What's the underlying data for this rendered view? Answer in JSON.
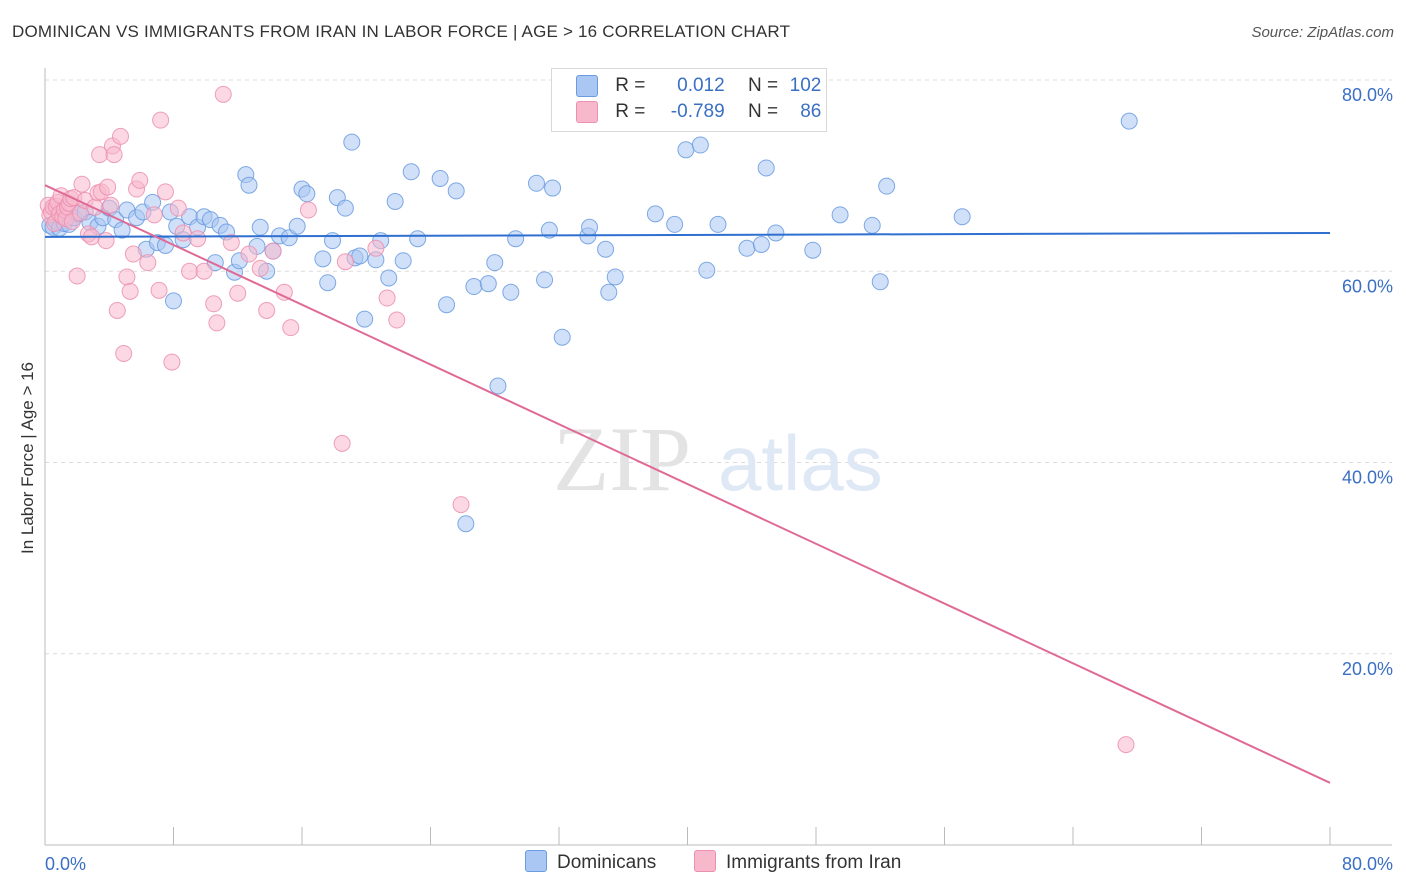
{
  "title": "DOMINICAN VS IMMIGRANTS FROM IRAN IN LABOR FORCE | AGE > 16 CORRELATION CHART",
  "source": "Source: ZipAtlas.com",
  "watermark": {
    "zip": "ZIP",
    "atlas": "atlas"
  },
  "legend": {
    "r_label": "R =",
    "n_label": "N =",
    "rows": [
      {
        "r": "0.012",
        "n": "102",
        "color": "#a9c7f2"
      },
      {
        "r": "-0.789",
        "n": "86",
        "color": "#f7b8cc"
      }
    ]
  },
  "chart_data": {
    "type": "scatter",
    "title": "DOMINICAN VS IMMIGRANTS FROM IRAN IN LABOR FORCE | AGE > 16 CORRELATION CHART",
    "xlabel": "",
    "ylabel": "In Labor Force | Age > 16",
    "xlim": [
      0,
      80
    ],
    "ylim": [
      0,
      82
    ],
    "x_tick_labels": [
      "0.0%",
      "80.0%"
    ],
    "y_ticks": [
      20,
      40,
      60,
      80
    ],
    "y_tick_labels": [
      "20.0%",
      "40.0%",
      "60.0%",
      "80.0%"
    ],
    "grid": true,
    "series": [
      {
        "name": "Dominicans",
        "color": "#6a9be0",
        "fill": "#a9c7f2",
        "trend": {
          "x": [
            0,
            80
          ],
          "y": [
            63.6,
            64.0
          ]
        },
        "points": [
          [
            0.3,
            64.8
          ],
          [
            0.5,
            64.6
          ],
          [
            0.7,
            65.2
          ],
          [
            0.9,
            64.5
          ],
          [
            1.2,
            65.0
          ],
          [
            1.5,
            64.9
          ],
          [
            1.8,
            65.6
          ],
          [
            2.1,
            66.0
          ],
          [
            2.5,
            66.2
          ],
          [
            2.8,
            65.1
          ],
          [
            3.3,
            64.7
          ],
          [
            3.6,
            65.6
          ],
          [
            4.0,
            66.6
          ],
          [
            4.4,
            65.4
          ],
          [
            4.8,
            64.3
          ],
          [
            5.1,
            66.4
          ],
          [
            5.7,
            65.6
          ],
          [
            6.1,
            66.2
          ],
          [
            6.3,
            62.3
          ],
          [
            6.7,
            67.2
          ],
          [
            7.0,
            63.0
          ],
          [
            7.5,
            62.7
          ],
          [
            7.8,
            66.2
          ],
          [
            8.0,
            56.9
          ],
          [
            8.2,
            64.7
          ],
          [
            8.6,
            63.3
          ],
          [
            9.0,
            65.7
          ],
          [
            9.5,
            64.6
          ],
          [
            9.9,
            65.7
          ],
          [
            10.3,
            65.4
          ],
          [
            10.6,
            60.9
          ],
          [
            10.9,
            64.8
          ],
          [
            11.3,
            64.1
          ],
          [
            11.8,
            59.9
          ],
          [
            12.1,
            61.1
          ],
          [
            12.5,
            70.1
          ],
          [
            12.7,
            69.0
          ],
          [
            13.2,
            62.6
          ],
          [
            13.4,
            64.6
          ],
          [
            13.8,
            60.0
          ],
          [
            14.2,
            62.1
          ],
          [
            14.6,
            63.7
          ],
          [
            15.2,
            63.5
          ],
          [
            15.7,
            64.7
          ],
          [
            16.0,
            68.6
          ],
          [
            16.3,
            68.1
          ],
          [
            17.3,
            61.3
          ],
          [
            17.6,
            58.8
          ],
          [
            17.9,
            63.2
          ],
          [
            18.2,
            67.7
          ],
          [
            18.7,
            66.6
          ],
          [
            19.1,
            73.5
          ],
          [
            19.3,
            61.4
          ],
          [
            19.6,
            61.6
          ],
          [
            19.9,
            55.0
          ],
          [
            20.6,
            61.2
          ],
          [
            20.9,
            63.2
          ],
          [
            21.4,
            59.3
          ],
          [
            21.8,
            67.3
          ],
          [
            22.3,
            61.1
          ],
          [
            22.8,
            70.4
          ],
          [
            23.2,
            63.4
          ],
          [
            24.6,
            69.7
          ],
          [
            25.0,
            56.5
          ],
          [
            25.6,
            68.4
          ],
          [
            26.2,
            33.6
          ],
          [
            26.7,
            58.4
          ],
          [
            27.6,
            58.7
          ],
          [
            28.0,
            60.9
          ],
          [
            28.2,
            48.0
          ],
          [
            29.0,
            57.8
          ],
          [
            29.3,
            63.4
          ],
          [
            30.6,
            69.2
          ],
          [
            31.1,
            59.1
          ],
          [
            31.4,
            64.3
          ],
          [
            31.6,
            68.7
          ],
          [
            32.2,
            53.1
          ],
          [
            33.8,
            63.7
          ],
          [
            33.9,
            64.6
          ],
          [
            34.9,
            62.3
          ],
          [
            35.1,
            57.8
          ],
          [
            35.5,
            59.4
          ],
          [
            38.0,
            66.0
          ],
          [
            39.2,
            64.9
          ],
          [
            39.9,
            72.7
          ],
          [
            40.8,
            73.2
          ],
          [
            41.2,
            60.1
          ],
          [
            41.9,
            64.9
          ],
          [
            43.7,
            62.4
          ],
          [
            44.6,
            62.8
          ],
          [
            44.9,
            70.8
          ],
          [
            45.5,
            64.0
          ],
          [
            47.8,
            62.2
          ],
          [
            49.5,
            65.9
          ],
          [
            51.5,
            64.8
          ],
          [
            52.0,
            58.9
          ],
          [
            52.4,
            68.9
          ],
          [
            57.1,
            65.7
          ],
          [
            67.5,
            75.7
          ]
        ]
      },
      {
        "name": "Immigrants from Iran",
        "color": "#ec8fb0",
        "fill": "#f7b8cc",
        "trend": {
          "x": [
            0,
            80
          ],
          "y": [
            69.0,
            6.5
          ]
        },
        "points": [
          [
            0.2,
            66.9
          ],
          [
            0.3,
            65.9
          ],
          [
            0.4,
            66.2
          ],
          [
            0.5,
            66.7
          ],
          [
            0.6,
            65.0
          ],
          [
            0.7,
            66.8
          ],
          [
            0.8,
            67.2
          ],
          [
            0.9,
            66.0
          ],
          [
            1.0,
            67.9
          ],
          [
            1.1,
            65.7
          ],
          [
            1.2,
            66.4
          ],
          [
            1.3,
            65.5
          ],
          [
            1.4,
            66.7
          ],
          [
            1.5,
            67.1
          ],
          [
            1.6,
            67.6
          ],
          [
            1.7,
            65.2
          ],
          [
            1.8,
            67.7
          ],
          [
            2.0,
            59.5
          ],
          [
            2.2,
            66.1
          ],
          [
            2.3,
            69.1
          ],
          [
            2.5,
            67.4
          ],
          [
            2.7,
            63.9
          ],
          [
            2.9,
            63.6
          ],
          [
            3.1,
            66.7
          ],
          [
            3.3,
            68.2
          ],
          [
            3.4,
            72.2
          ],
          [
            3.5,
            68.3
          ],
          [
            3.8,
            63.2
          ],
          [
            3.9,
            68.8
          ],
          [
            4.1,
            66.9
          ],
          [
            4.2,
            73.1
          ],
          [
            4.3,
            72.2
          ],
          [
            4.5,
            55.9
          ],
          [
            4.7,
            74.1
          ],
          [
            4.9,
            51.4
          ],
          [
            5.1,
            59.4
          ],
          [
            5.3,
            57.9
          ],
          [
            5.5,
            61.8
          ],
          [
            5.7,
            68.6
          ],
          [
            5.9,
            69.5
          ],
          [
            6.4,
            60.9
          ],
          [
            6.8,
            65.9
          ],
          [
            7.1,
            58.0
          ],
          [
            7.2,
            75.8
          ],
          [
            7.5,
            68.3
          ],
          [
            7.9,
            50.5
          ],
          [
            8.3,
            66.6
          ],
          [
            8.6,
            64.0
          ],
          [
            9.0,
            60.0
          ],
          [
            9.5,
            63.4
          ],
          [
            9.9,
            60.0
          ],
          [
            10.5,
            56.6
          ],
          [
            10.7,
            54.6
          ],
          [
            11.1,
            78.5
          ],
          [
            11.6,
            63.0
          ],
          [
            12.0,
            57.7
          ],
          [
            12.7,
            61.8
          ],
          [
            13.4,
            60.3
          ],
          [
            13.8,
            55.9
          ],
          [
            14.2,
            62.1
          ],
          [
            14.9,
            57.8
          ],
          [
            15.3,
            54.1
          ],
          [
            16.4,
            66.4
          ],
          [
            18.5,
            42.0
          ],
          [
            18.7,
            61.0
          ],
          [
            20.6,
            62.4
          ],
          [
            21.3,
            57.2
          ],
          [
            21.9,
            54.9
          ],
          [
            25.9,
            35.6
          ],
          [
            67.3,
            10.5
          ]
        ]
      }
    ]
  },
  "bottom_legend": [
    {
      "label": "Dominicans",
      "color": "#a9c7f2"
    },
    {
      "label": "Immigrants from Iran",
      "color": "#f7b8cc"
    }
  ]
}
